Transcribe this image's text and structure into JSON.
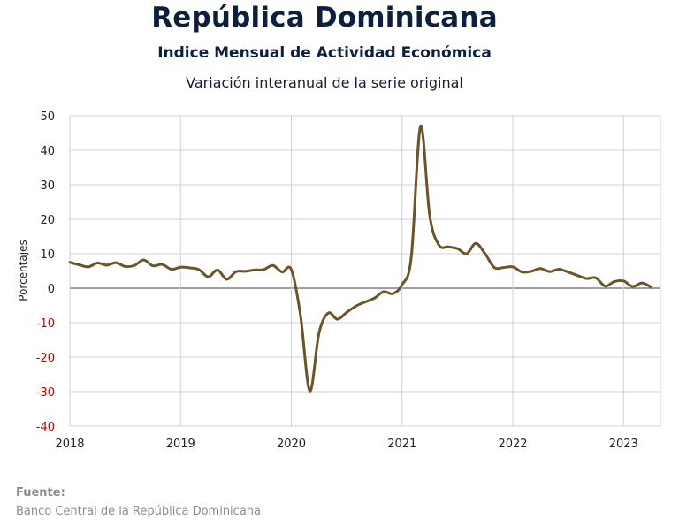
{
  "header": {
    "title": "República Dominicana",
    "subtitle": "Indice Mensual de  Actividad Económica",
    "subtitle2": "Variación interanual de la serie original"
  },
  "source": {
    "label": "Fuente:",
    "text": "Banco Central de la República Dominicana"
  },
  "chart_data": {
    "type": "line",
    "title": "Variación interanual de la serie original",
    "ylabel": "Porcentajes",
    "xlabel": "",
    "ylim": [
      -40,
      50
    ],
    "yticks": [
      "50",
      "40",
      "30",
      "20",
      "10",
      "0",
      "-10",
      "-20",
      "-30",
      "-40"
    ],
    "xticks": [
      "2018",
      "2019",
      "2020",
      "2021",
      "2022",
      "2023"
    ],
    "grid": true,
    "line_color": "#6b5528",
    "negative_tick_color": "#c00000",
    "series": [
      {
        "x": [
          "2018-01",
          "2018-02",
          "2018-03",
          "2018-04",
          "2018-05",
          "2018-06",
          "2018-07",
          "2018-08",
          "2018-09",
          "2018-10",
          "2018-11",
          "2018-12",
          "2019-01",
          "2019-02",
          "2019-03",
          "2019-04",
          "2019-05",
          "2019-06",
          "2019-07",
          "2019-08",
          "2019-09",
          "2019-10",
          "2019-11",
          "2019-12",
          "2020-01",
          "2020-02",
          "2020-03",
          "2020-04",
          "2020-05",
          "2020-06",
          "2020-07",
          "2020-08",
          "2020-09",
          "2020-10",
          "2020-11",
          "2020-12",
          "2021-01",
          "2021-02",
          "2021-03",
          "2021-04",
          "2021-05",
          "2021-06",
          "2021-07",
          "2021-08",
          "2021-09",
          "2021-10",
          "2021-11",
          "2021-12",
          "2022-01",
          "2022-02",
          "2022-03",
          "2022-04",
          "2022-05",
          "2022-06",
          "2022-07",
          "2022-08",
          "2022-09",
          "2022-10",
          "2022-11",
          "2022-12",
          "2023-01",
          "2023-02",
          "2023-03",
          "2023-04"
        ],
        "values": [
          7.5,
          6.8,
          6.2,
          7.3,
          6.7,
          7.4,
          6.3,
          6.6,
          8.2,
          6.5,
          6.9,
          5.5,
          6.1,
          5.9,
          5.4,
          3.3,
          5.3,
          2.6,
          4.8,
          4.9,
          5.3,
          5.4,
          6.6,
          4.7,
          5.4,
          -8.0,
          -29.8,
          -13.0,
          -7.2,
          -9.0,
          -7.0,
          -5.2,
          -4.0,
          -2.9,
          -1.0,
          -1.6,
          1.0,
          9.0,
          47.0,
          21.0,
          12.5,
          12.0,
          11.5,
          10.0,
          13.0,
          10.0,
          6.0,
          6.0,
          6.2,
          4.7,
          4.9,
          5.7,
          4.8,
          5.5,
          4.7,
          3.7,
          2.8,
          3.0,
          0.6,
          1.9,
          2.1,
          0.5,
          1.5,
          0.3
        ]
      }
    ]
  }
}
